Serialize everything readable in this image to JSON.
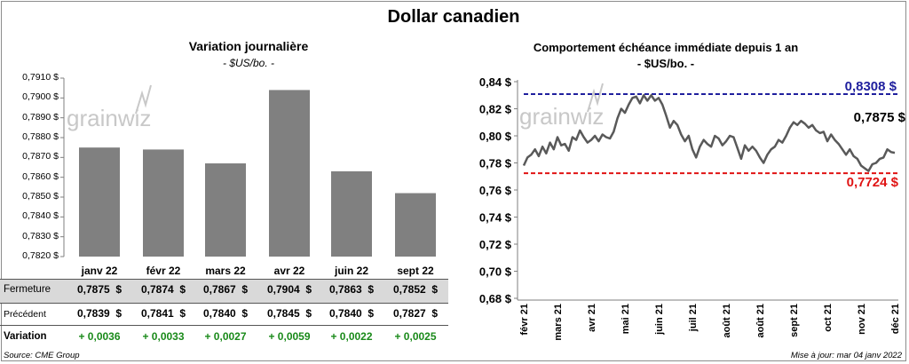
{
  "title": "Dollar canadien",
  "left_chart": {
    "title": "Variation  journalière",
    "unit": "- $US/bo. -",
    "watermark": "grainwiz",
    "y_ticks": [
      "0,7910 $",
      "0,7900 $",
      "0,7890 $",
      "0,7880 $",
      "0,7870 $",
      "0,7860 $",
      "0,7850 $",
      "0,7840 $",
      "0,7830 $",
      "0,7820 $"
    ]
  },
  "table": {
    "row_labels": [
      "Fermeture",
      "Précédent",
      "Variation"
    ],
    "fermeture": [
      "0,7875  $",
      "0,7874  $",
      "0,7867  $",
      "0,7904  $",
      "0,7863  $",
      "0,7852  $"
    ],
    "precedent": [
      "0,7839  $",
      "0,7841  $",
      "0,7840  $",
      "0,7845  $",
      "0,7840  $",
      "0,7827  $"
    ],
    "variation": [
      "+ 0,0036",
      "+ 0,0033",
      "+ 0,0027",
      "+ 0,0059",
      "+ 0,0022",
      "+ 0,0025"
    ]
  },
  "right_chart": {
    "title": "Comportement échéance immédiate depuis 1 an",
    "unit": "- $US/bo. -",
    "watermark": "grainwiz",
    "high_label": "0,8308 $",
    "low_label": "0,7724  $",
    "last_label": "0,7875 $",
    "y_ticks": [
      "0,84 $",
      "0,82 $",
      "0,80 $",
      "0,78 $",
      "0,76 $",
      "0,74 $",
      "0,72 $",
      "0,70 $",
      "0,68 $"
    ],
    "x_ticks": [
      "févr 21",
      "mars 21",
      "avr 21",
      "mai 21",
      "juin 21",
      "juil 21",
      "août 21",
      "août 21",
      "sept 21",
      "oct 21",
      "nov 21",
      "déc 21"
    ]
  },
  "footer": {
    "source": "Source: CME Group",
    "updated": "Mise à jour: mar 04 janv 2022"
  },
  "colors": {
    "bar": "#808080",
    "line": "#595959",
    "high": "#1f1f9e",
    "low": "#e01414",
    "variation": "#1a8a1a"
  },
  "chart_data": [
    {
      "type": "bar",
      "title": "Variation  journalière",
      "ylabel": "$US/bo.",
      "categories": [
        "janv 22",
        "févr 22",
        "mars 22",
        "avr 22",
        "juin 22",
        "sept 22"
      ],
      "values": [
        0.7875,
        0.7874,
        0.7867,
        0.7904,
        0.7863,
        0.7852
      ],
      "ylim": [
        0.782,
        0.791
      ],
      "grid": false
    },
    {
      "type": "line",
      "title": "Comportement échéance immédiate depuis 1 an",
      "ylabel": "$US/bo.",
      "ylim": [
        0.68,
        0.84
      ],
      "grid": false,
      "reference_lines": [
        {
          "label": "0,8308 $",
          "value": 0.8308,
          "color": "#1f1f9e",
          "style": "dashed"
        },
        {
          "label": "0,7724  $",
          "value": 0.7724,
          "color": "#e01414",
          "style": "dashed"
        }
      ],
      "x": [
        "févr 21",
        "mars 21",
        "avr 21",
        "mai 21",
        "juin 21",
        "juil 21",
        "août 21",
        "sept 21",
        "oct 21",
        "nov 21",
        "déc 21"
      ],
      "values": [
        0.78,
        0.795,
        0.8,
        0.825,
        0.828,
        0.79,
        0.79,
        0.8,
        0.81,
        0.78,
        0.787
      ],
      "daily_values": [
        0.778,
        0.784,
        0.786,
        0.79,
        0.785,
        0.792,
        0.787,
        0.795,
        0.79,
        0.799,
        0.793,
        0.794,
        0.789,
        0.799,
        0.797,
        0.804,
        0.799,
        0.795,
        0.797,
        0.8,
        0.796,
        0.801,
        0.799,
        0.798,
        0.803,
        0.813,
        0.82,
        0.817,
        0.823,
        0.828,
        0.829,
        0.824,
        0.83,
        0.826,
        0.83,
        0.826,
        0.828,
        0.823,
        0.815,
        0.806,
        0.811,
        0.808,
        0.801,
        0.796,
        0.8,
        0.79,
        0.784,
        0.792,
        0.797,
        0.794,
        0.792,
        0.8,
        0.798,
        0.793,
        0.796,
        0.8,
        0.799,
        0.791,
        0.783,
        0.793,
        0.789,
        0.792,
        0.789,
        0.784,
        0.78,
        0.786,
        0.79,
        0.792,
        0.797,
        0.795,
        0.8,
        0.806,
        0.81,
        0.808,
        0.811,
        0.809,
        0.806,
        0.808,
        0.804,
        0.802,
        0.803,
        0.796,
        0.801,
        0.797,
        0.794,
        0.79,
        0.786,
        0.79,
        0.785,
        0.783,
        0.778,
        0.776,
        0.774,
        0.779,
        0.78,
        0.783,
        0.784,
        0.79,
        0.788,
        0.7875
      ]
    }
  ]
}
